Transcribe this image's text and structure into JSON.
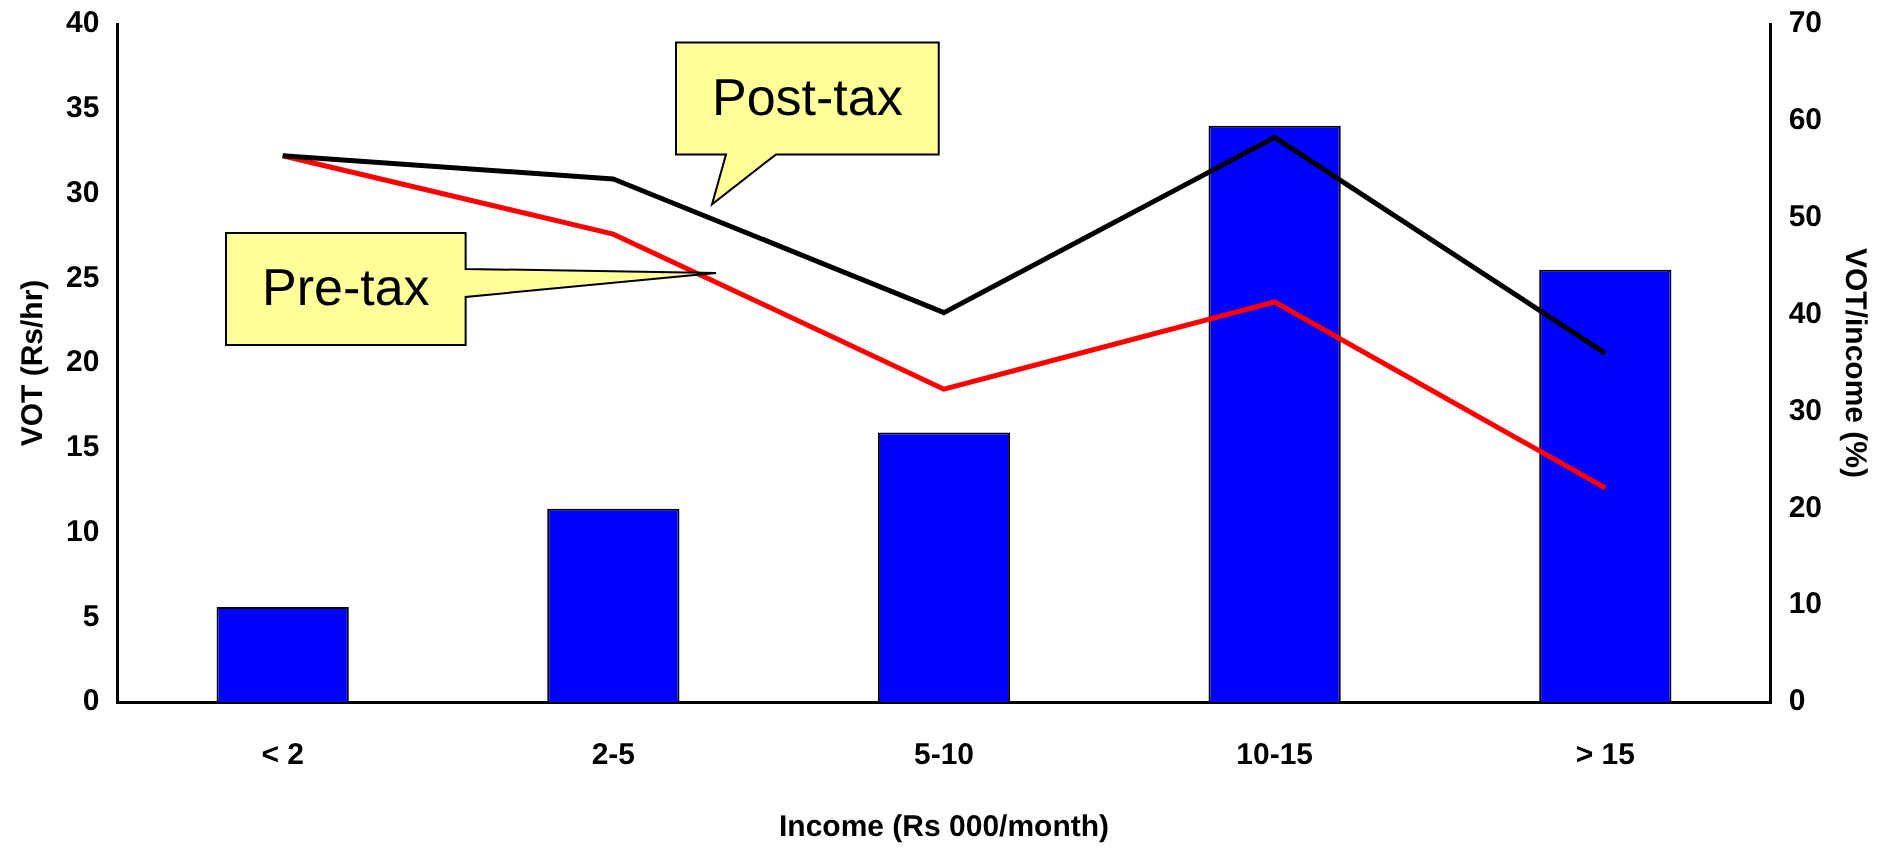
{
  "chart_data": {
    "type": "bar",
    "xlabel": "Income (Rs 000/month)",
    "ylabel": "VOT (Rs/hr)",
    "y2label": "VOT/income (%)",
    "categories": [
      "< 2",
      "2-5",
      "5-10",
      "10-15",
      "> 15"
    ],
    "series": [
      {
        "color": "#0000ff",
        "values": [
          5.6,
          11.4,
          15.9,
          34.0,
          25.5
        ]
      },
      {
        "type": "line",
        "name": "Post-tax",
        "color": "#000000",
        "axis": "y2",
        "values": [
          56.4,
          54.0,
          40.2,
          58.3,
          36.0
        ]
      },
      {
        "type": "line",
        "name": "Pre-tax",
        "color": "#ff0000",
        "axis": "y2",
        "values": [
          56.4,
          48.3,
          32.3,
          41.3,
          22.1
        ]
      }
    ],
    "ylim": [
      0,
      40
    ],
    "yticks": [
      0,
      5,
      10,
      15,
      20,
      25,
      30,
      35,
      40
    ],
    "y2lim": [
      0,
      70
    ],
    "y2ticks": [
      0,
      10,
      20,
      30,
      40,
      50,
      60,
      70
    ],
    "grid": false,
    "legend": false,
    "marker": "none",
    "line_style": "solid"
  }
}
